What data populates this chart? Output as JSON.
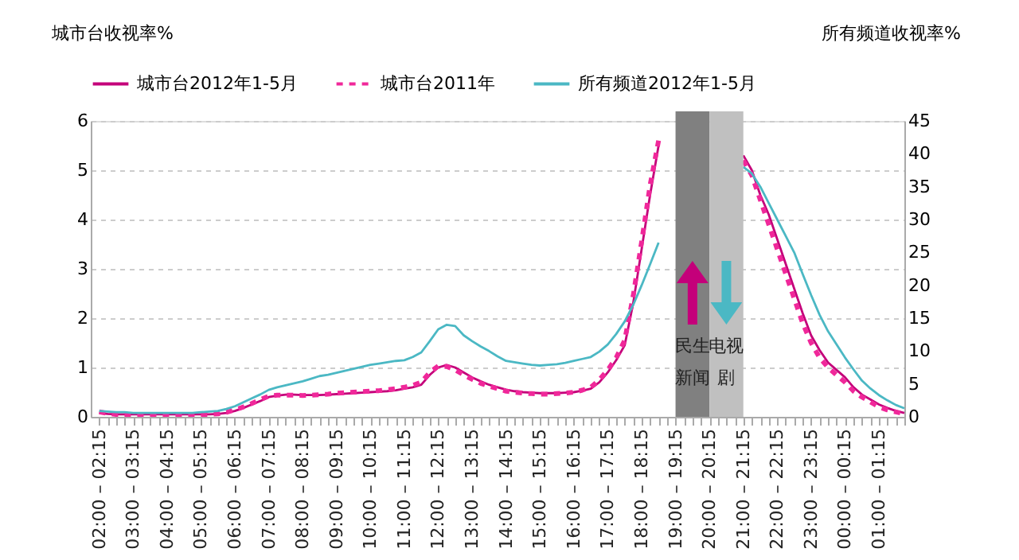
{
  "chart_data": {
    "type": "line",
    "ylabel": "城市台收视率%",
    "y2label": "所有频道收视率%",
    "legend": "top",
    "grid": "y",
    "ylim": [
      0,
      6
    ],
    "yticks": [
      0,
      1,
      2,
      3,
      4,
      5,
      6
    ],
    "y2lim": [
      0,
      45
    ],
    "y2ticks": [
      0,
      5,
      10,
      15,
      20,
      25,
      30,
      35,
      40,
      45
    ],
    "categories": [
      "02:00 – 02:15",
      null,
      null,
      null,
      "03:00 – 03:15",
      null,
      null,
      null,
      "04:00 – 04:15",
      null,
      null,
      null,
      "05:00 – 05:15",
      null,
      null,
      null,
      "06:00 – 06:15",
      null,
      null,
      null,
      "07:00 – 07:15",
      null,
      null,
      null,
      "08:00 – 08:15",
      null,
      null,
      null,
      "09:00 – 09:15",
      null,
      null,
      null,
      "10:00 – 10:15",
      null,
      null,
      null,
      "11:00 – 11:15",
      null,
      null,
      null,
      "12:00 – 12:15",
      null,
      null,
      null,
      "13:00 – 13:15",
      null,
      null,
      null,
      "14:00 – 14:15",
      null,
      null,
      null,
      "15:00 – 15:15",
      null,
      null,
      null,
      "16:00 – 16:15",
      null,
      null,
      null,
      "17:00 – 17:15",
      null,
      null,
      null,
      "18:00 – 18:15",
      null,
      null,
      null,
      "19:00 – 19:15",
      null,
      null,
      null,
      "20:00 – 20:15",
      null,
      null,
      null,
      "21:00 – 21:15",
      null,
      null,
      null,
      "22:00 – 22:15",
      null,
      null,
      null,
      "23:00 – 23:15",
      null,
      null,
      null,
      "00:00 – 00:15",
      null,
      null,
      null,
      "01:00 – 01:15",
      null,
      null,
      null
    ],
    "bands": [
      {
        "axis": "x",
        "from": "19:00 – 19:15",
        "to": "20:00 – 20:15",
        "label": "民生新闻",
        "color": "#808080"
      },
      {
        "axis": "x",
        "from": "20:00 – 20:15",
        "to": "21:00 – 21:15",
        "label": "电视剧",
        "color": "#c0c0c0"
      }
    ],
    "series": [
      {
        "name": "城市台2012年1-5月",
        "color": "#c4007a",
        "line_style": "solid",
        "values": [
          0.08,
          0.06,
          0.05,
          0.05,
          0.05,
          0.05,
          0.05,
          0.05,
          0.05,
          0.05,
          0.05,
          0.05,
          0.05,
          0.05,
          0.06,
          0.08,
          0.12,
          0.18,
          0.25,
          0.32,
          0.4,
          0.43,
          0.45,
          0.45,
          0.44,
          0.44,
          0.44,
          0.45,
          0.46,
          0.47,
          0.48,
          0.49,
          0.5,
          0.51,
          0.52,
          0.54,
          0.57,
          0.6,
          0.65,
          0.85,
          1.0,
          1.05,
          1.0,
          0.9,
          0.8,
          0.72,
          0.65,
          0.6,
          0.55,
          0.52,
          0.5,
          0.49,
          0.48,
          0.48,
          0.48,
          0.49,
          0.5,
          0.53,
          0.57,
          0.7,
          0.9,
          1.15,
          1.45,
          2.3,
          3.4,
          4.5,
          5.5,
          null,
          null,
          null,
          null,
          null,
          null,
          null,
          null,
          null,
          5.3,
          5.0,
          4.5,
          4.1,
          3.6,
          3.1,
          2.6,
          2.1,
          1.65,
          1.35,
          1.1,
          0.95,
          0.8,
          0.6,
          0.45,
          0.35,
          0.25,
          0.18,
          0.12,
          0.08
        ]
      },
      {
        "name": "城市台2011年",
        "color": "#f0289a",
        "line_style": "dashed",
        "values": [
          0.1,
          0.07,
          0.05,
          0.05,
          0.05,
          0.05,
          0.05,
          0.05,
          0.05,
          0.05,
          0.05,
          0.05,
          0.05,
          0.05,
          0.06,
          0.09,
          0.14,
          0.2,
          0.27,
          0.35,
          0.42,
          0.44,
          0.44,
          0.44,
          0.43,
          0.44,
          0.45,
          0.46,
          0.48,
          0.49,
          0.5,
          0.51,
          0.52,
          0.53,
          0.55,
          0.57,
          0.6,
          0.64,
          0.7,
          0.9,
          1.03,
          1.02,
          0.95,
          0.85,
          0.76,
          0.68,
          0.62,
          0.57,
          0.52,
          0.5,
          0.48,
          0.47,
          0.46,
          0.46,
          0.47,
          0.48,
          0.5,
          0.54,
          0.6,
          0.75,
          0.95,
          1.2,
          1.55,
          2.45,
          3.55,
          4.7,
          5.6,
          null,
          null,
          null,
          null,
          null,
          null,
          null,
          null,
          null,
          5.2,
          4.9,
          4.4,
          3.9,
          3.4,
          2.9,
          2.4,
          1.9,
          1.5,
          1.2,
          1.0,
          0.85,
          0.7,
          0.52,
          0.4,
          0.3,
          0.2,
          0.14,
          0.1,
          0.06
        ]
      },
      {
        "name": "所有频道2012年1-5月",
        "color": "#4bb8c4",
        "line_style": "solid",
        "axis": "y2",
        "values": [
          0.9,
          0.8,
          0.7,
          0.7,
          0.6,
          0.6,
          0.6,
          0.6,
          0.6,
          0.6,
          0.6,
          0.6,
          0.7,
          0.8,
          0.9,
          1.2,
          1.6,
          2.2,
          2.8,
          3.4,
          4.1,
          4.5,
          4.8,
          5.1,
          5.4,
          5.8,
          6.2,
          6.4,
          6.7,
          7.0,
          7.3,
          7.6,
          7.9,
          8.1,
          8.3,
          8.5,
          8.6,
          9.1,
          9.8,
          11.5,
          13.3,
          14.0,
          13.8,
          12.4,
          11.5,
          10.7,
          10.0,
          9.2,
          8.5,
          8.3,
          8.1,
          7.9,
          7.8,
          7.9,
          8.0,
          8.2,
          8.5,
          8.8,
          9.1,
          9.9,
          11.0,
          12.6,
          14.5,
          17.0,
          20.0,
          23.2,
          26.5,
          null,
          null,
          null,
          null,
          null,
          null,
          null,
          null,
          null,
          38.0,
          37.0,
          35.0,
          32.5,
          30.0,
          27.5,
          25.0,
          21.7,
          18.5,
          15.5,
          13.0,
          11.0,
          9.0,
          7.2,
          5.5,
          4.3,
          3.3,
          2.5,
          1.8,
          1.3
        ]
      }
    ]
  }
}
